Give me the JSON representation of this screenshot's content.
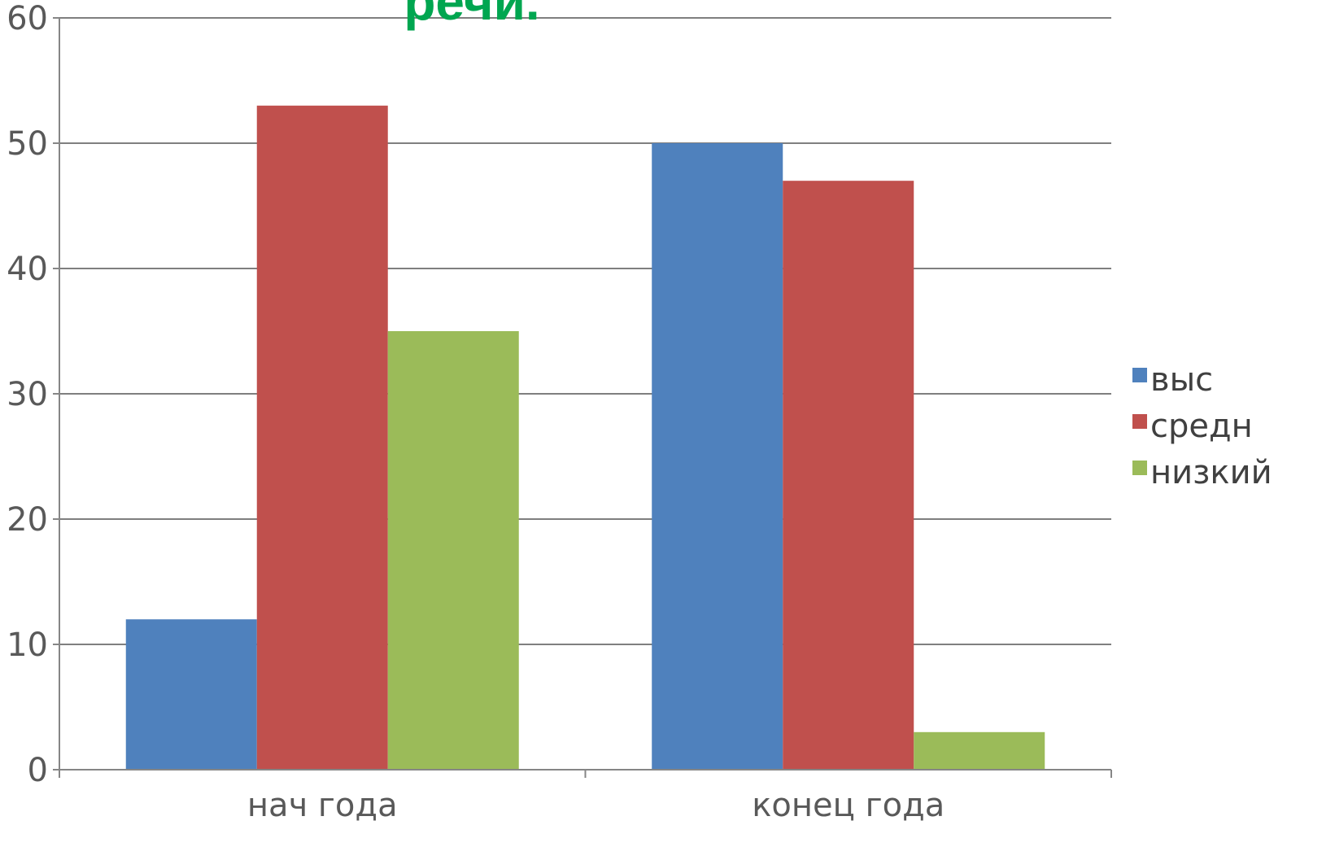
{
  "chart_data": {
    "type": "bar",
    "title": "речи.",
    "categories": [
      "нач года",
      "конец года"
    ],
    "series": [
      {
        "name": "выс",
        "color": "#4F81BD",
        "values": [
          12,
          50
        ]
      },
      {
        "name": "средн",
        "color": "#C0504D",
        "values": [
          53,
          47
        ]
      },
      {
        "name": "низкий",
        "color": "#9BBB59",
        "values": [
          35,
          3
        ]
      }
    ],
    "yticks": [
      "0",
      "10",
      "20",
      "30",
      "40",
      "50",
      "60"
    ],
    "ylim": [
      0,
      60
    ],
    "xlabel": "",
    "ylabel": "",
    "grid": true,
    "legend_position": "right",
    "colors": {
      "title": "#00A650",
      "gridline": "#7F7F7F",
      "axis": "#868686"
    }
  }
}
